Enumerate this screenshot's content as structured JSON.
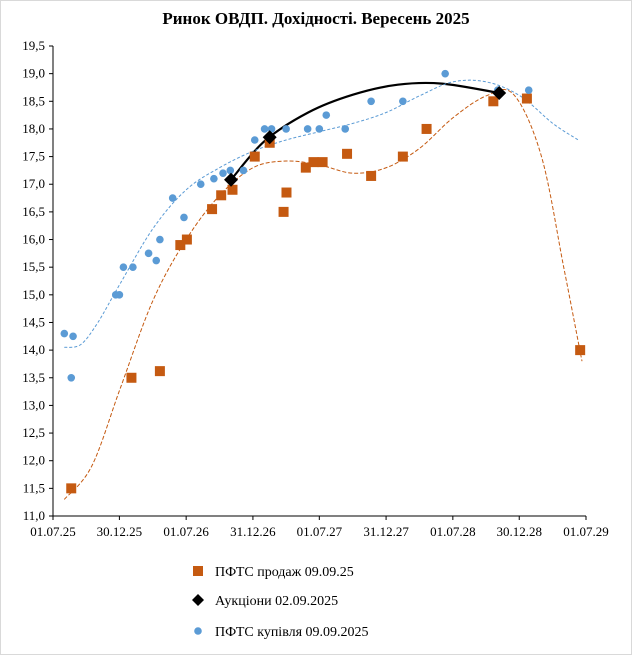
{
  "chart_data": {
    "type": "scatter",
    "title": "Ринок ОВДП. Дохідності.  Вересень 2025",
    "xlabel": "",
    "ylabel": "",
    "x_ticks": [
      "01.07.25",
      "30.12.25",
      "01.07.26",
      "31.12.26",
      "01.07.27",
      "31.12.27",
      "01.07.28",
      "30.12.28",
      "01.07.29"
    ],
    "x_tick_dates": [
      "2025-07-01",
      "2025-12-30",
      "2026-07-01",
      "2026-12-31",
      "2027-07-01",
      "2027-12-31",
      "2028-07-01",
      "2028-12-30",
      "2029-07-01"
    ],
    "xlim": [
      "2025-07-01",
      "2029-07-01"
    ],
    "y_ticks": [
      "11,0",
      "11,5",
      "12,0",
      "12,5",
      "13,0",
      "13,5",
      "14,0",
      "14,5",
      "15,0",
      "15,5",
      "16,0",
      "16,5",
      "17,0",
      "17,5",
      "18,0",
      "18,5",
      "19,0",
      "19,5"
    ],
    "ylim": [
      11.0,
      19.5
    ],
    "grid": false,
    "legend_position": "bottom",
    "series": [
      {
        "name": "ПФТС продаж 09.09.25",
        "marker": "square",
        "color": "#C55A11",
        "trend_color": "#C55A11",
        "points": [
          {
            "x": "2025-08-20",
            "y": 11.5
          },
          {
            "x": "2026-02-01",
            "y": 13.5
          },
          {
            "x": "2026-04-20",
            "y": 13.62
          },
          {
            "x": "2026-06-15",
            "y": 15.9
          },
          {
            "x": "2026-07-03",
            "y": 16.0
          },
          {
            "x": "2026-09-10",
            "y": 16.55
          },
          {
            "x": "2026-10-05",
            "y": 16.8
          },
          {
            "x": "2026-11-05",
            "y": 16.9
          },
          {
            "x": "2027-01-05",
            "y": 17.5
          },
          {
            "x": "2027-02-15",
            "y": 17.75
          },
          {
            "x": "2027-03-25",
            "y": 16.5
          },
          {
            "x": "2027-04-02",
            "y": 16.85
          },
          {
            "x": "2027-05-25",
            "y": 17.3
          },
          {
            "x": "2027-06-15",
            "y": 17.4
          },
          {
            "x": "2027-07-10",
            "y": 17.4
          },
          {
            "x": "2027-09-15",
            "y": 17.55
          },
          {
            "x": "2027-11-20",
            "y": 17.15
          },
          {
            "x": "2028-02-15",
            "y": 17.5
          },
          {
            "x": "2028-04-20",
            "y": 18.0
          },
          {
            "x": "2028-10-20",
            "y": 18.5
          },
          {
            "x": "2029-01-20",
            "y": 18.55
          },
          {
            "x": "2029-06-15",
            "y": 14.0
          }
        ]
      },
      {
        "name": "Аукціони 02.09.2025",
        "marker": "diamond",
        "color": "#000000",
        "trend_color": "#000000",
        "points": [
          {
            "x": "2026-11-01",
            "y": 17.08
          },
          {
            "x": "2027-02-15",
            "y": 17.85
          },
          {
            "x": "2028-11-05",
            "y": 18.65
          }
        ]
      },
      {
        "name": "ПФТС купівля 09.09.2025",
        "marker": "circle",
        "color": "#5B9BD5",
        "trend_color": "#5B9BD5",
        "points": [
          {
            "x": "2025-08-01",
            "y": 14.3
          },
          {
            "x": "2025-08-20",
            "y": 13.5
          },
          {
            "x": "2025-08-25",
            "y": 14.25
          },
          {
            "x": "2025-12-20",
            "y": 15.0
          },
          {
            "x": "2025-12-30",
            "y": 15.0
          },
          {
            "x": "2026-01-10",
            "y": 15.5
          },
          {
            "x": "2026-02-05",
            "y": 15.5
          },
          {
            "x": "2026-03-20",
            "y": 15.75
          },
          {
            "x": "2026-04-10",
            "y": 15.62
          },
          {
            "x": "2026-04-20",
            "y": 16.0
          },
          {
            "x": "2026-05-25",
            "y": 16.75
          },
          {
            "x": "2026-06-25",
            "y": 16.4
          },
          {
            "x": "2026-08-10",
            "y": 17.0
          },
          {
            "x": "2026-09-15",
            "y": 17.1
          },
          {
            "x": "2026-10-10",
            "y": 17.2
          },
          {
            "x": "2026-10-30",
            "y": 17.25
          },
          {
            "x": "2026-12-05",
            "y": 17.25
          },
          {
            "x": "2027-01-05",
            "y": 17.8
          },
          {
            "x": "2027-02-01",
            "y": 18.0
          },
          {
            "x": "2027-02-20",
            "y": 18.0
          },
          {
            "x": "2027-04-01",
            "y": 18.0
          },
          {
            "x": "2027-05-30",
            "y": 18.0
          },
          {
            "x": "2027-07-01",
            "y": 18.0
          },
          {
            "x": "2027-07-20",
            "y": 18.25
          },
          {
            "x": "2027-09-10",
            "y": 18.0
          },
          {
            "x": "2027-11-20",
            "y": 18.5
          },
          {
            "x": "2028-02-15",
            "y": 18.5
          },
          {
            "x": "2028-06-10",
            "y": 19.0
          },
          {
            "x": "2028-11-01",
            "y": 18.7
          },
          {
            "x": "2029-01-25",
            "y": 18.7
          }
        ]
      }
    ],
    "trendlines": [
      {
        "series": "ПФТС продаж 09.09.25",
        "points": [
          {
            "x": "2025-08-01",
            "y": 11.3
          },
          {
            "x": "2025-10-15",
            "y": 11.9
          },
          {
            "x": "2026-01-01",
            "y": 13.3
          },
          {
            "x": "2026-04-01",
            "y": 14.9
          },
          {
            "x": "2026-07-01",
            "y": 16.0
          },
          {
            "x": "2026-10-01",
            "y": 16.8
          },
          {
            "x": "2027-01-01",
            "y": 17.3
          },
          {
            "x": "2027-04-01",
            "y": 17.42
          },
          {
            "x": "2027-07-01",
            "y": 17.35
          },
          {
            "x": "2027-10-01",
            "y": 17.2
          },
          {
            "x": "2028-01-01",
            "y": 17.3
          },
          {
            "x": "2028-04-01",
            "y": 17.65
          },
          {
            "x": "2028-07-01",
            "y": 18.2
          },
          {
            "x": "2028-10-01",
            "y": 18.6
          },
          {
            "x": "2028-12-15",
            "y": 18.62
          },
          {
            "x": "2029-03-01",
            "y": 17.5
          },
          {
            "x": "2029-05-01",
            "y": 15.5
          },
          {
            "x": "2029-06-20",
            "y": 13.8
          }
        ]
      },
      {
        "series": "Аукціони 02.09.2025",
        "points": [
          {
            "x": "2026-11-01",
            "y": 17.08
          },
          {
            "x": "2027-02-01",
            "y": 17.78
          },
          {
            "x": "2027-06-01",
            "y": 18.3
          },
          {
            "x": "2027-10-01",
            "y": 18.62
          },
          {
            "x": "2028-02-01",
            "y": 18.8
          },
          {
            "x": "2028-06-01",
            "y": 18.82
          },
          {
            "x": "2028-11-05",
            "y": 18.65
          }
        ]
      },
      {
        "series": "ПФТС купівля 09.09.2025",
        "points": [
          {
            "x": "2025-08-01",
            "y": 14.05
          },
          {
            "x": "2025-09-15",
            "y": 14.1
          },
          {
            "x": "2025-11-01",
            "y": 14.5
          },
          {
            "x": "2026-01-01",
            "y": 15.2
          },
          {
            "x": "2026-04-01",
            "y": 16.2
          },
          {
            "x": "2026-07-01",
            "y": 16.9
          },
          {
            "x": "2026-10-01",
            "y": 17.3
          },
          {
            "x": "2027-01-01",
            "y": 17.6
          },
          {
            "x": "2027-04-01",
            "y": 17.8
          },
          {
            "x": "2027-07-01",
            "y": 17.95
          },
          {
            "x": "2027-10-01",
            "y": 18.1
          },
          {
            "x": "2028-01-01",
            "y": 18.3
          },
          {
            "x": "2028-04-01",
            "y": 18.6
          },
          {
            "x": "2028-07-01",
            "y": 18.85
          },
          {
            "x": "2028-10-01",
            "y": 18.85
          },
          {
            "x": "2029-01-01",
            "y": 18.6
          },
          {
            "x": "2029-04-01",
            "y": 18.1
          },
          {
            "x": "2029-06-10",
            "y": 17.8
          }
        ]
      }
    ]
  }
}
